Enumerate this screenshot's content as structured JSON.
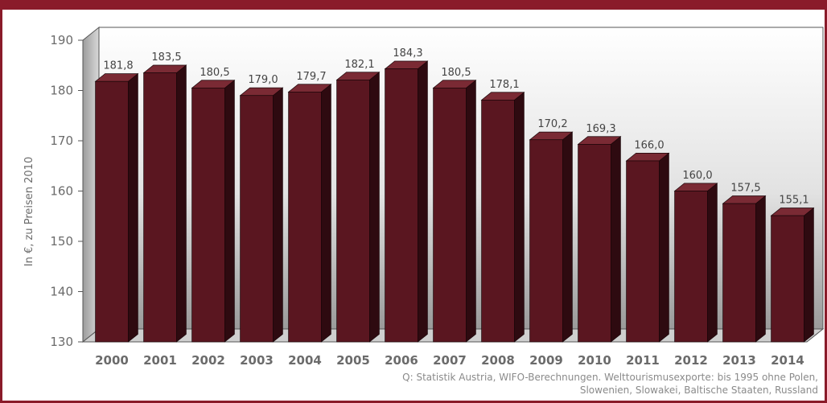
{
  "header": {
    "title": ""
  },
  "chart_data": {
    "type": "bar",
    "title": "",
    "xlabel": "",
    "ylabel": "In €, zu Preisen 2010",
    "categories": [
      "2000",
      "2001",
      "2002",
      "2003",
      "2004",
      "2005",
      "2006",
      "2007",
      "2008",
      "2009",
      "2010",
      "2011",
      "2012",
      "2013",
      "2014"
    ],
    "values": [
      181.8,
      183.5,
      180.5,
      179.0,
      179.7,
      182.1,
      184.3,
      180.5,
      178.1,
      170.2,
      169.3,
      166.0,
      160.0,
      157.5,
      155.1
    ],
    "value_labels": [
      "181,8",
      "183,5",
      "180,5",
      "179,0",
      "179,7",
      "182,1",
      "184,3",
      "180,5",
      "178,1",
      "170,2",
      "169,3",
      "166,0",
      "160,0",
      "157,5",
      "155,1"
    ],
    "yticks": [
      130,
      140,
      150,
      160,
      170,
      180,
      190
    ],
    "ylim": [
      130,
      190
    ],
    "grid": false,
    "legend": "none",
    "style": "3d",
    "colors": {
      "bar_front": "#5a1620",
      "bar_side": "#2e0a10",
      "bar_top": "#7a2a34",
      "frame": "#8a1b2a",
      "text": "#6b6b6b"
    }
  },
  "source": {
    "line1": "Q: Statistik Austria, WIFO-Berechnungen. Welttourismusexporte: bis 1995 ohne Polen,",
    "line2": "Slowenien, Slowakei, Baltische Staaten, Russland"
  }
}
